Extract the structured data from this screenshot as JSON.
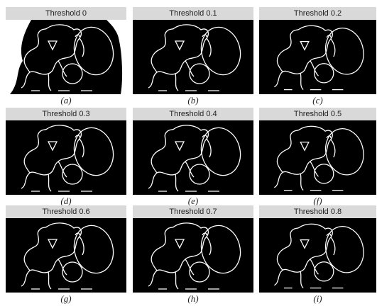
{
  "panels": [
    {
      "title": "Threshold 0",
      "caption": "(a)"
    },
    {
      "title": "Threshold 0.1",
      "caption": "(b)"
    },
    {
      "title": "Threshold 0.2",
      "caption": "(c)"
    },
    {
      "title": "Threshold 0.3",
      "caption": "(d)"
    },
    {
      "title": "Threshold 0.4",
      "caption": "(e)"
    },
    {
      "title": "Threshold 0.5",
      "caption": "(f)"
    },
    {
      "title": "Threshold 0.6",
      "caption": "(g)"
    },
    {
      "title": "Threshold 0.7",
      "caption": "(h)"
    },
    {
      "title": "Threshold 0.8",
      "caption": "(i)"
    }
  ]
}
